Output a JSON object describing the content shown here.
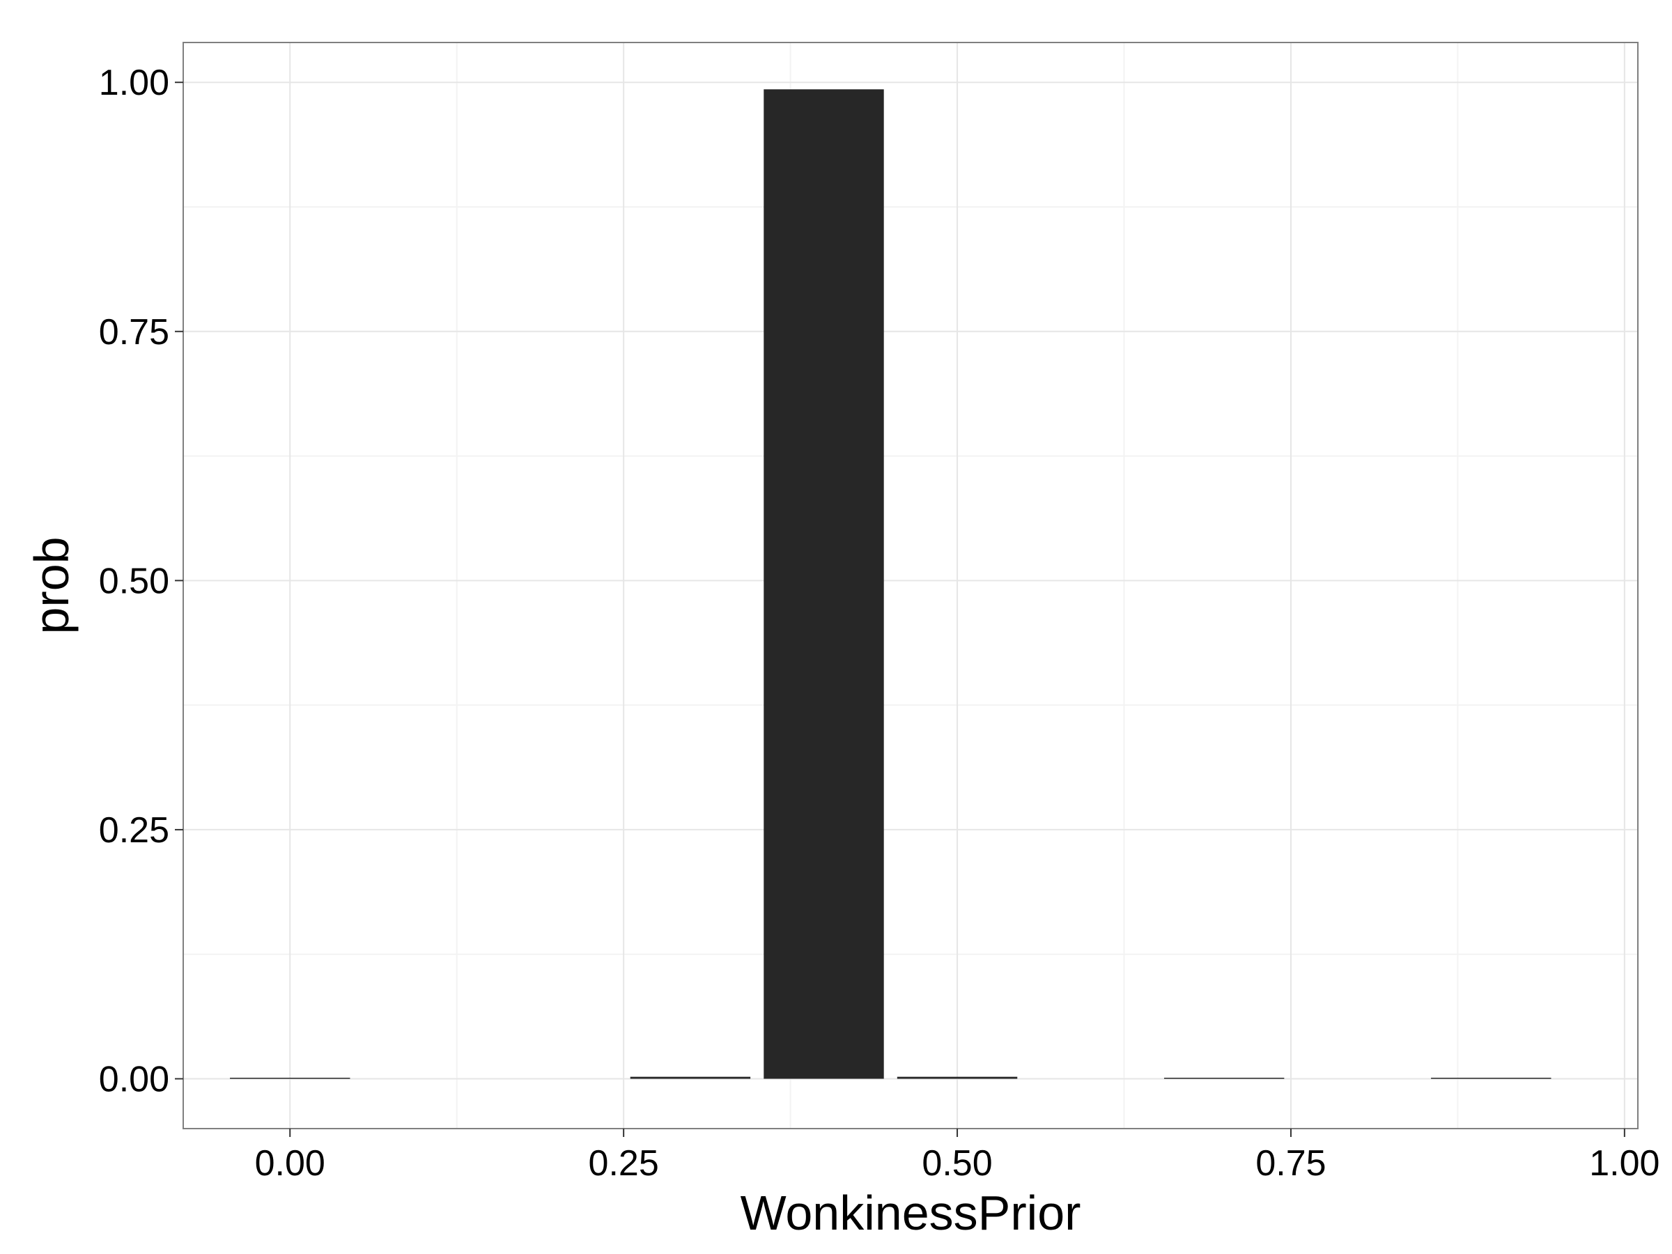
{
  "chart_data": {
    "type": "bar",
    "xlabel": "WonkinessPrior",
    "ylabel": "prob",
    "x": [
      0.0,
      0.3,
      0.4,
      0.5,
      0.7,
      0.9
    ],
    "values": [
      0.0001,
      0.002,
      0.993,
      0.002,
      0.0001,
      0.0001
    ],
    "bar_width": 0.09,
    "xlim": [
      -0.08,
      1.01
    ],
    "ylim": [
      -0.05,
      1.04
    ],
    "x_ticks": [
      "0.00",
      "0.25",
      "0.50",
      "0.75",
      "1.00"
    ],
    "y_ticks": [
      "0.00",
      "0.25",
      "0.50",
      "0.75",
      "1.00"
    ],
    "grid": true,
    "legend": "none",
    "colors": {
      "bar": "#272727",
      "grid_major": "#e6e6e6",
      "grid_minor": "#f3f3f3",
      "border": "#7f7f7f"
    }
  }
}
